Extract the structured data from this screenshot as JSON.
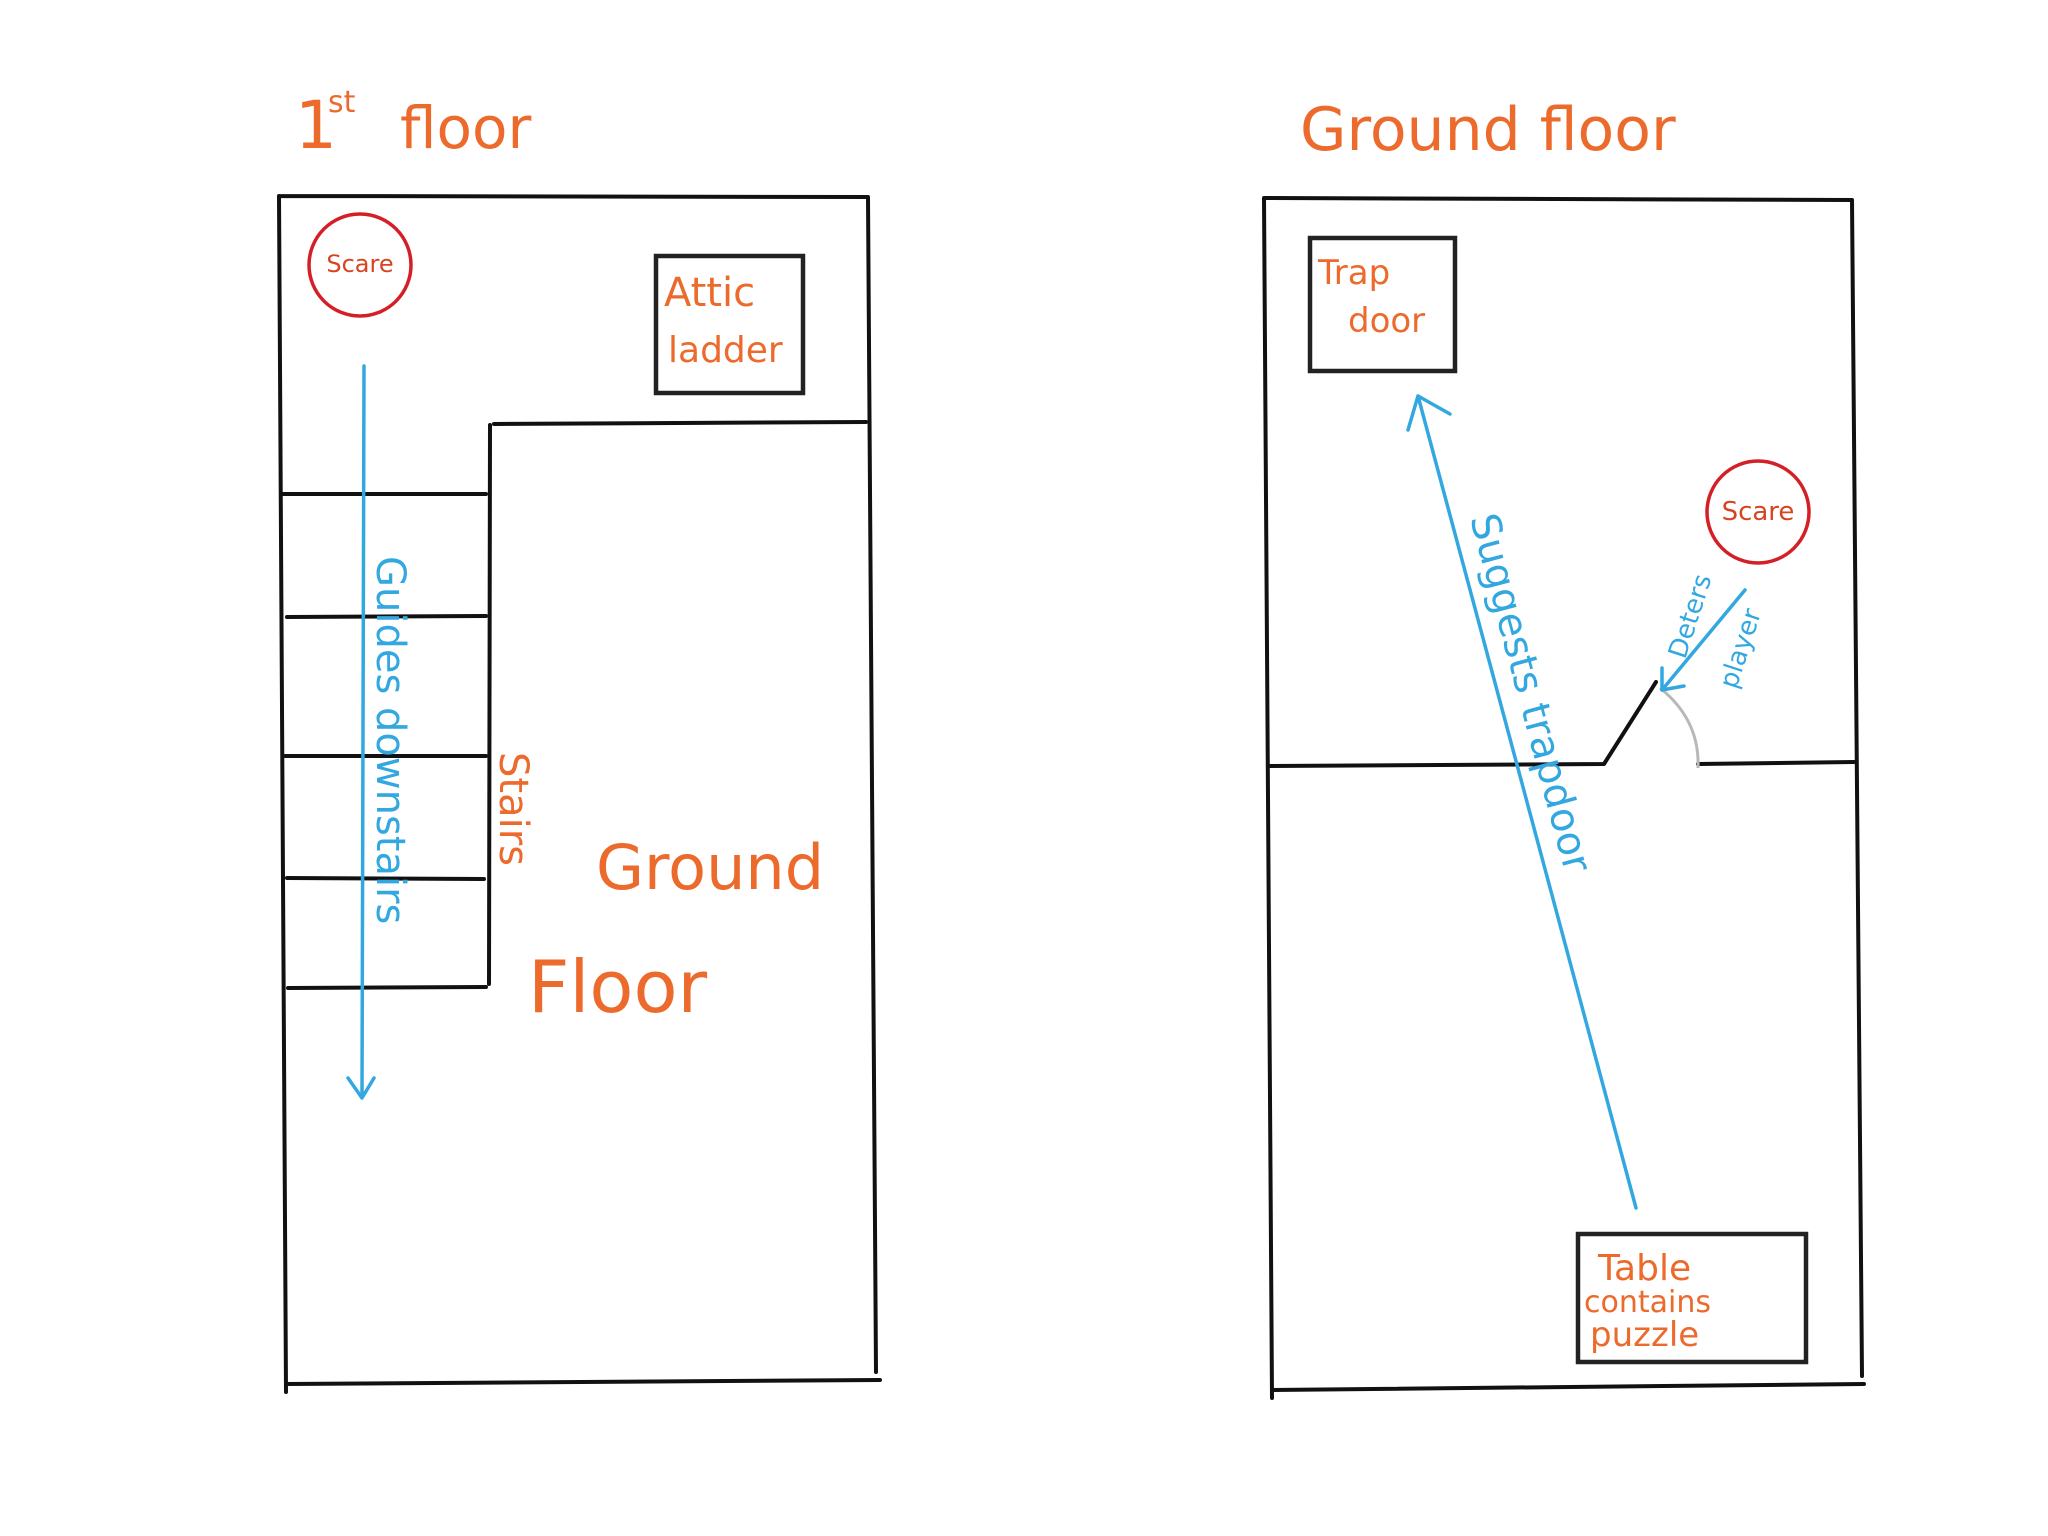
{
  "colors": {
    "label_orange": "#ec6a2c",
    "arrow_blue": "#33a8e0",
    "scare_red": "#d51f26",
    "wall_black": "#111111"
  },
  "first_floor": {
    "title": "1st floor",
    "title_main": "1",
    "title_sup": "st",
    "title_word": "floor",
    "scare": "Scare",
    "attic_line1": "Attic",
    "attic_line2": "ladder",
    "stairs": "Stairs",
    "guides": "Guides downstairs",
    "ground_line1": "Ground",
    "ground_line2": "Floor"
  },
  "ground_floor": {
    "title": "Ground floor",
    "trap_line1": "Trap",
    "trap_line2": "door",
    "scare": "Scare",
    "deters_line1": "Deters",
    "deters_line2": "player",
    "suggests": "Suggests trapdoor",
    "table_line1": "Table",
    "table_line2": "contains",
    "table_line3": "puzzle"
  }
}
